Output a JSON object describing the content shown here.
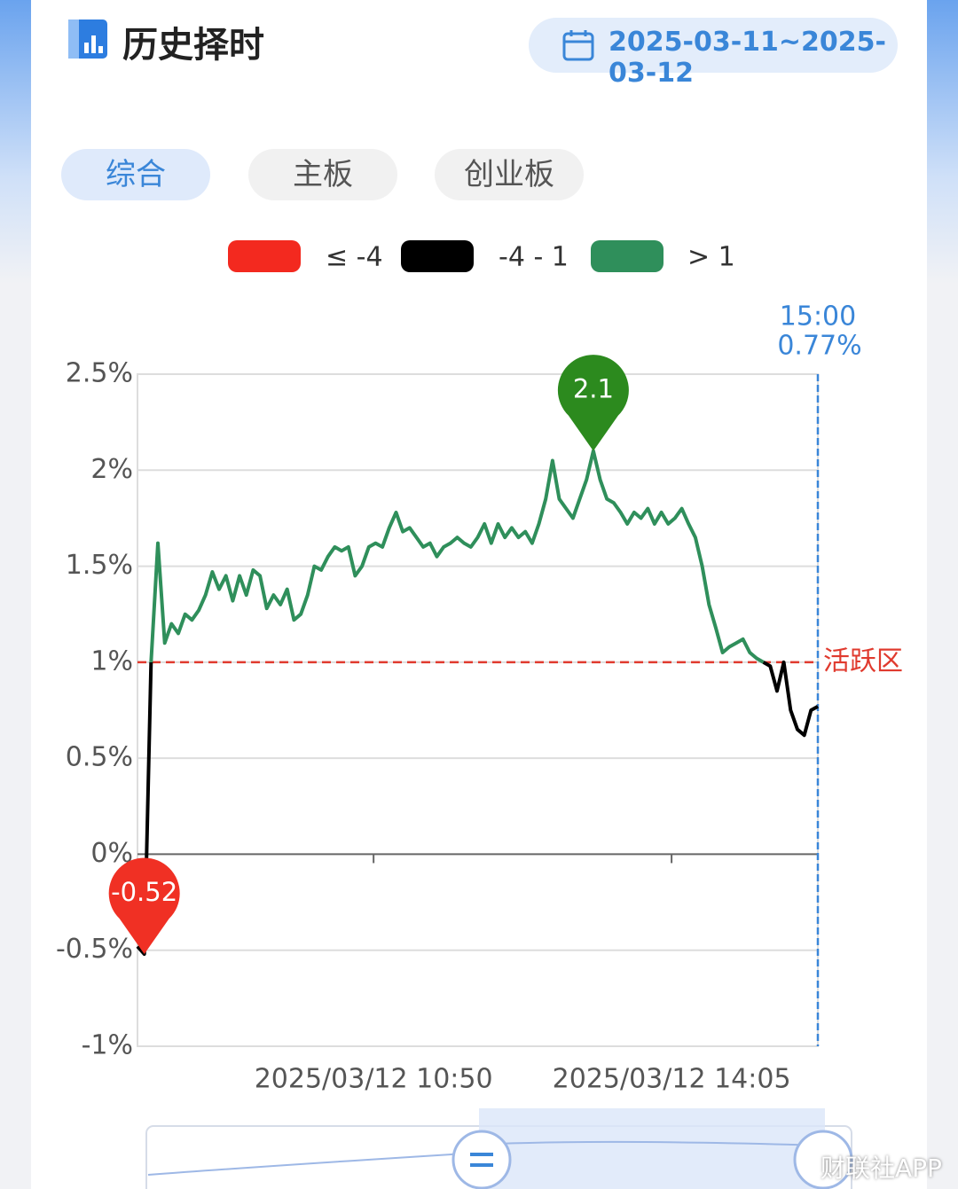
{
  "header": {
    "title": "历史择时",
    "date_range": "2025-03-11~2025-03-12"
  },
  "tabs": [
    {
      "label": "综合",
      "active": true
    },
    {
      "label": "主板",
      "active": false
    },
    {
      "label": "创业板",
      "active": false
    }
  ],
  "watermark": "财联社APP",
  "chart_data": {
    "type": "line",
    "x": [
      0,
      1,
      2,
      3,
      4,
      5,
      6,
      7,
      8,
      9,
      10,
      11,
      12,
      13,
      14,
      15,
      16,
      17,
      18,
      19,
      20,
      21,
      22,
      23,
      24,
      25,
      26,
      27,
      28,
      29,
      30,
      31,
      32,
      33,
      34,
      35,
      36,
      37,
      38,
      39,
      40,
      41,
      42,
      43,
      44,
      45,
      46,
      47,
      48,
      49,
      50,
      51,
      52,
      53,
      54,
      55,
      56,
      57,
      58,
      59,
      60,
      61,
      62,
      63,
      64,
      65,
      66,
      67,
      68,
      69,
      70,
      71,
      72,
      73,
      74,
      75,
      76,
      77,
      78,
      79,
      80,
      81,
      82,
      83,
      84,
      85,
      86,
      87,
      88,
      89,
      90,
      91,
      92,
      93,
      94,
      95,
      96,
      97,
      98,
      99,
      100
    ],
    "xlim": [
      0,
      100
    ],
    "xticks": [
      {
        "value": 34.7,
        "label": "2025/03/12 10:50"
      },
      {
        "value": 78.5,
        "label": "2025/03/12 14:05"
      }
    ],
    "ylim": [
      -1,
      2.5
    ],
    "yticks": [
      {
        "value": -1,
        "label": "-1%"
      },
      {
        "value": -0.5,
        "label": "-0.5%"
      },
      {
        "value": 0,
        "label": "0%"
      },
      {
        "value": 0.5,
        "label": "0.5%"
      },
      {
        "value": 1,
        "label": "1%"
      },
      {
        "value": 1.5,
        "label": "1.5%"
      },
      {
        "value": 2,
        "label": "2%"
      },
      {
        "value": 2.5,
        "label": "2.5%"
      }
    ],
    "grid": true,
    "series": [
      {
        "name": "≤ -4",
        "color": "#f3291f",
        "values": [
          null,
          null,
          null,
          null,
          null,
          null,
          null,
          null,
          null,
          null,
          null,
          null,
          null,
          null,
          null,
          null,
          null,
          null,
          null,
          null,
          null,
          null,
          null,
          null,
          null,
          null,
          null,
          null,
          null,
          null,
          null,
          null,
          null,
          null,
          null,
          null,
          null,
          null,
          null,
          null,
          null,
          null,
          null,
          null,
          null,
          null,
          null,
          null,
          null,
          null,
          null,
          null,
          null,
          null,
          null,
          null,
          null,
          null,
          null,
          null,
          null,
          null,
          null,
          null,
          null,
          null,
          null,
          null,
          null,
          null,
          null,
          null,
          null,
          null,
          null,
          null,
          null,
          null,
          null,
          null,
          null,
          null,
          null,
          null,
          null,
          null,
          null,
          null,
          null,
          null,
          null,
          null,
          null,
          null,
          null,
          null,
          null,
          null,
          null,
          null,
          null
        ]
      },
      {
        "name": "-4 - 1",
        "color": "#000000",
        "values": [
          -0.48,
          -0.52,
          1.0,
          null,
          null,
          null,
          null,
          null,
          null,
          null,
          null,
          null,
          null,
          null,
          null,
          null,
          null,
          null,
          null,
          null,
          null,
          null,
          null,
          null,
          null,
          null,
          null,
          null,
          null,
          null,
          null,
          null,
          null,
          null,
          null,
          null,
          null,
          null,
          null,
          null,
          null,
          null,
          null,
          null,
          null,
          null,
          null,
          null,
          null,
          null,
          null,
          null,
          null,
          null,
          null,
          null,
          null,
          null,
          null,
          null,
          null,
          null,
          null,
          null,
          null,
          null,
          null,
          null,
          null,
          null,
          null,
          null,
          null,
          null,
          null,
          null,
          null,
          null,
          null,
          null,
          null,
          null,
          null,
          null,
          null,
          null,
          null,
          null,
          null,
          null,
          null,
          null,
          1.0,
          0.98,
          0.85,
          1.0,
          0.75,
          0.65,
          0.62,
          0.75,
          0.77
        ]
      },
      {
        "name": "> 1",
        "color": "#2f8f5b",
        "values": [
          null,
          null,
          1.0,
          1.62,
          1.1,
          1.2,
          1.15,
          1.25,
          1.22,
          1.27,
          1.35,
          1.47,
          1.38,
          1.45,
          1.32,
          1.45,
          1.35,
          1.48,
          1.45,
          1.28,
          1.35,
          1.3,
          1.38,
          1.22,
          1.25,
          1.35,
          1.5,
          1.48,
          1.55,
          1.6,
          1.58,
          1.6,
          1.45,
          1.5,
          1.6,
          1.62,
          1.6,
          1.7,
          1.78,
          1.68,
          1.7,
          1.65,
          1.6,
          1.62,
          1.55,
          1.6,
          1.62,
          1.65,
          1.62,
          1.6,
          1.65,
          1.72,
          1.62,
          1.72,
          1.65,
          1.7,
          1.65,
          1.68,
          1.62,
          1.72,
          1.85,
          2.05,
          1.85,
          1.8,
          1.75,
          1.85,
          1.95,
          2.1,
          1.95,
          1.85,
          1.83,
          1.78,
          1.72,
          1.78,
          1.75,
          1.8,
          1.72,
          1.78,
          1.72,
          1.75,
          1.8,
          1.72,
          1.65,
          1.5,
          1.3,
          1.18,
          1.05,
          1.08,
          1.1,
          1.12,
          1.05,
          1.02,
          1.0,
          null,
          null,
          null,
          null,
          null,
          null,
          null,
          null
        ]
      }
    ],
    "pins": [
      {
        "x": 67,
        "value": 2.1,
        "color": "#2c8a1e"
      },
      {
        "x": 1,
        "value": -0.52,
        "color": "#f03024"
      }
    ],
    "reference_line": {
      "value": 1,
      "label": "活跃区",
      "color": "#e03a2e"
    },
    "cursor": {
      "x": 100,
      "time": "15:00",
      "value": {
        "value": 0.77,
        "label": "0.77%"
      },
      "color": "#3a86d8"
    }
  }
}
